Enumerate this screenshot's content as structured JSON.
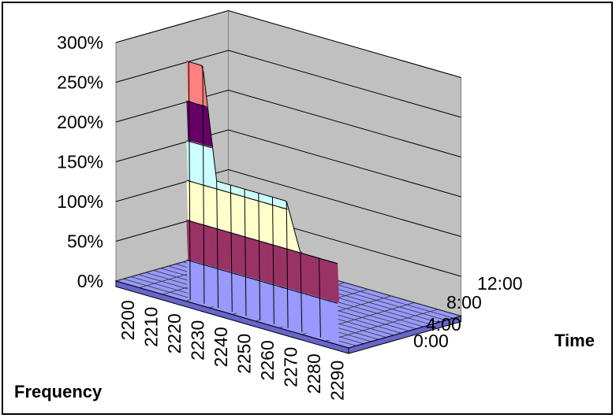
{
  "chart_data": {
    "type": "surface",
    "title": "",
    "xlabel": "Frequency",
    "ylabel": "Time",
    "zlabel": "",
    "z_ticks": [
      "0%",
      "50%",
      "100%",
      "150%",
      "200%",
      "250%",
      "300%"
    ],
    "zlim": [
      0,
      300
    ],
    "x_ticks": [
      "2200",
      "2210",
      "2220",
      "2230",
      "2240",
      "2250",
      "2260",
      "2270",
      "2280",
      "2290"
    ],
    "y_ticks": [
      "0:00",
      "4:00",
      "8:00",
      "12:00"
    ],
    "legend": "none",
    "grid": true,
    "bands": [
      {
        "range": "0-50%",
        "color": "#9999ff"
      },
      {
        "range": "50-100%",
        "color": "#993366"
      },
      {
        "range": "100-150%",
        "color": "#ffffcc"
      },
      {
        "range": "150-200%",
        "color": "#ccffff"
      },
      {
        "range": "200-250%",
        "color": "#660066"
      },
      {
        "range": "250-300%",
        "color": "#ff8080"
      }
    ],
    "frequency_profile": [
      {
        "frequency": 2200,
        "peak": 0
      },
      {
        "frequency": 2210,
        "peak": 0
      },
      {
        "frequency": 2220,
        "peak": 0
      },
      {
        "frequency": 2230,
        "peak": 300
      },
      {
        "frequency": 2240,
        "peak": 200
      },
      {
        "frequency": 2250,
        "peak": 200
      },
      {
        "frequency": 2260,
        "peak": 200
      },
      {
        "frequency": 2270,
        "peak": 100
      },
      {
        "frequency": 2280,
        "peak": 100
      },
      {
        "frequency": 2290,
        "peak": 0
      }
    ]
  }
}
